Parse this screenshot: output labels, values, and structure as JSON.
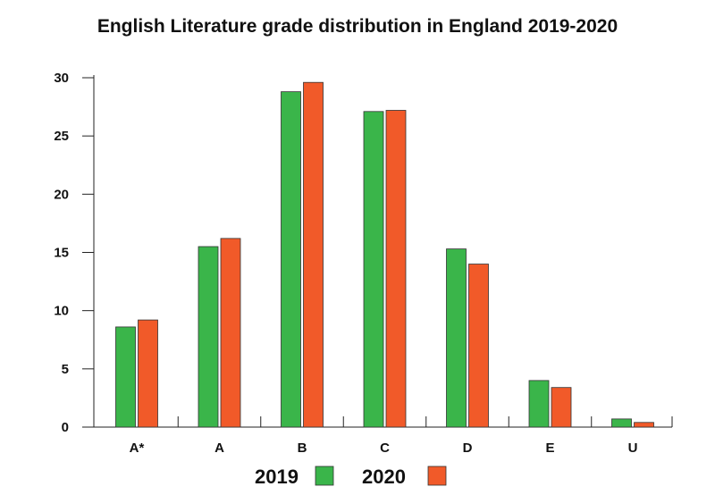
{
  "chart_data": {
    "type": "bar",
    "title": "English Literature grade distribution in England 2019-2020",
    "xlabel": "",
    "ylabel": "",
    "categories": [
      "A*",
      "A",
      "B",
      "C",
      "D",
      "E",
      "U"
    ],
    "series": [
      {
        "name": "2019",
        "color": "#3ab54a",
        "values": [
          8.6,
          15.5,
          28.8,
          27.1,
          15.3,
          4.0,
          0.7
        ]
      },
      {
        "name": "2020",
        "color": "#f15a29",
        "values": [
          9.2,
          16.2,
          29.6,
          27.2,
          14.0,
          3.4,
          0.4
        ]
      }
    ],
    "ylim": [
      0,
      30
    ],
    "yticks": [
      0,
      5,
      10,
      15,
      20,
      25,
      30
    ],
    "grid": false,
    "legend_position": "bottom-center"
  }
}
